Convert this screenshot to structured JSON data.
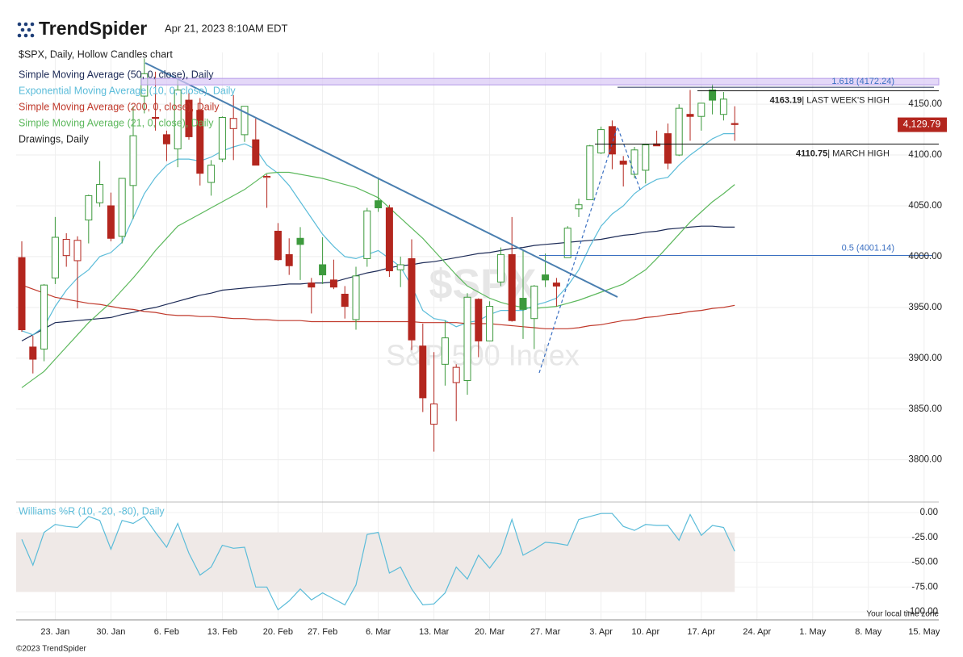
{
  "header": {
    "brand": "TrendSpider",
    "timestamp": "Apr 21, 2023 8:10AM EDT"
  },
  "footer": {
    "copyright": "©2023 TrendSpider",
    "timezone": "Your local time zone"
  },
  "chart_data": [
    {
      "type": "candlestick",
      "title": "$SPX, Daily, Hollow Candles chart",
      "watermark": "$SPX",
      "watermark_subtitle": "S&P 500 Index",
      "drawings_label": "Drawings, Daily",
      "up_color": "#3d9a3d",
      "down_color": "#b3261e",
      "grid": true,
      "categories": [
        null,
        null,
        null,
        "23. Jan",
        null,
        null,
        null,
        null,
        "30. Jan",
        null,
        null,
        null,
        null,
        "6. Feb",
        null,
        null,
        null,
        null,
        "13. Feb",
        null,
        null,
        null,
        null,
        "20. Feb",
        null,
        null,
        null,
        "27. Feb",
        null,
        null,
        null,
        null,
        "6. Mar",
        null,
        null,
        null,
        null,
        "13. Mar",
        null,
        null,
        null,
        null,
        "20. Mar",
        null,
        null,
        null,
        null,
        "27. Mar",
        null,
        null,
        null,
        null,
        "3. Apr",
        null,
        null,
        null,
        "10. Apr",
        null,
        null,
        null,
        null,
        "17. Apr",
        null,
        null,
        null,
        null,
        "24. Apr",
        null,
        null,
        null,
        null,
        "1. May",
        null,
        null,
        null,
        null,
        "8. May",
        null,
        null,
        null,
        null,
        "15. May"
      ],
      "open": [
        3999,
        3911,
        3909,
        3979,
        4001,
        3996,
        4036,
        4053,
        4050,
        4020,
        4070,
        4158,
        4137,
        4120,
        4106,
        4154,
        4144,
        4073,
        4096,
        4126,
        4120,
        4115,
        4078,
        4025,
        4002,
        4018,
        3974,
        3992,
        3977,
        3963,
        3938,
        3998,
        4055,
        4048,
        3987,
        3998,
        3912,
        3835,
        3894,
        3876,
        3878,
        3958,
        3917,
        3975,
        4002,
        3959,
        3939,
        3982,
        3974,
        3999,
        4047,
        4056,
        4102,
        4128,
        4094,
        4081,
        4085,
        4111,
        4121,
        4100,
        4140,
        4138,
        4164,
        4140,
        4131,
        null,
        null,
        null,
        null,
        null,
        null,
        null,
        null,
        null,
        null,
        null,
        null,
        null,
        null,
        null,
        null,
        null
      ],
      "high": [
        4015,
        3922,
        3973,
        4039,
        4023,
        4020,
        4061,
        4094,
        4063,
        4077,
        4148,
        4195,
        4182,
        4124,
        4176,
        4161,
        4156,
        4095,
        4138,
        4159,
        4148,
        4136,
        4081,
        4033,
        4018,
        4029,
        3979,
        4019,
        3997,
        3971,
        3990,
        4048,
        4078,
        4051,
        4000,
        4017,
        3934,
        3906,
        3937,
        3894,
        3964,
        3959,
        3956,
        4009,
        4039,
        4007,
        3972,
        4003,
        3979,
        4030,
        4057,
        4110,
        4128,
        4134,
        4099,
        4108,
        4110,
        4124,
        4131,
        4150,
        4164,
        4151,
        4170,
        4162,
        4148,
        null,
        null,
        null,
        null,
        null,
        null,
        null,
        null,
        null,
        null,
        null,
        null,
        null,
        null,
        null,
        null,
        null
      ],
      "low": [
        3926,
        3885,
        3897,
        3973,
        3990,
        3949,
        4013,
        4049,
        4015,
        4013,
        4037,
        4141,
        4124,
        4094,
        4088,
        4115,
        4070,
        4060,
        4093,
        4095,
        4113,
        4090,
        4048,
        3996,
        3982,
        3977,
        3944,
        3973,
        3968,
        3939,
        3928,
        3990,
        4044,
        3980,
        3970,
        3908,
        3847,
        3808,
        3873,
        3838,
        3864,
        3901,
        3917,
        3971,
        3936,
        3919,
        3909,
        3970,
        3951,
        3999,
        4039,
        4056,
        4101,
        4086,
        4069,
        4077,
        4072,
        4109,
        4086,
        4099,
        4114,
        4124,
        4140,
        4134,
        4114,
        null,
        null,
        null,
        null,
        null,
        null,
        null,
        null,
        null,
        null,
        null,
        null,
        null,
        null,
        null,
        null,
        null
      ],
      "close": [
        3928,
        3899,
        3972,
        4019,
        4017,
        4016,
        4060,
        4071,
        4018,
        4077,
        4119,
        4180,
        4136,
        4111,
        4164,
        4118,
        4082,
        4090,
        4137,
        4136,
        4148,
        4090,
        4079,
        3997,
        3991,
        4012,
        3970,
        3982,
        3970,
        3951,
        3981,
        4045,
        4048,
        3986,
        3992,
        3918,
        3861,
        3855,
        3920,
        3891,
        3960,
        3917,
        3951,
        4002,
        3937,
        3948,
        3971,
        3977,
        3971,
        4028,
        4051,
        4109,
        4125,
        4101,
        4091,
        4105,
        4110,
        4109,
        4092,
        4146,
        4138,
        4151,
        4154,
        4155,
        4130,
        null,
        null,
        null,
        null,
        null,
        null,
        null,
        null,
        null,
        null,
        null,
        null,
        null,
        null,
        null,
        null,
        null
      ],
      "series": [
        {
          "name": "Simple Moving Average (50, 0, close), Daily",
          "color": "#1d2b57",
          "values": [
            3917,
            3923,
            3929,
            3935,
            3936,
            3937,
            3938,
            3939,
            3940,
            3943,
            3945,
            3948,
            3950,
            3953,
            3956,
            3959,
            3962,
            3964,
            3967,
            3968,
            3969,
            3970,
            3971,
            3972,
            3973,
            3973,
            3974,
            3974,
            3975,
            3978,
            3981,
            3984,
            3986,
            3989,
            3991,
            3992,
            3994,
            3995,
            3997,
            3999,
            4001,
            4003,
            4004,
            4006,
            4008,
            4009,
            4011,
            4012,
            4013,
            4014,
            4015,
            4016,
            4017,
            4019,
            4021,
            4022,
            4024,
            4025,
            4027,
            4028,
            4029,
            4030,
            4030,
            4029,
            4029,
            null,
            null,
            null,
            null,
            null,
            null,
            null,
            null,
            null,
            null,
            null,
            null,
            null,
            null,
            null,
            null,
            null
          ]
        },
        {
          "name": "Exponential Moving Average (10, 0, close), Daily",
          "color": "#5bbcd9",
          "values": [
            3927,
            3923,
            3931,
            3951,
            3967,
            3979,
            3987,
            4000,
            4004,
            4014,
            4038,
            4062,
            4078,
            4090,
            4096,
            4096,
            4094,
            4098,
            4104,
            4108,
            4111,
            4106,
            4090,
            4082,
            4070,
            4054,
            4038,
            4022,
            4010,
            4000,
            3998,
            4002,
            4006,
            3998,
            3990,
            3971,
            3947,
            3939,
            3937,
            3931,
            3935,
            3937,
            3943,
            3947,
            3947,
            3947,
            3952,
            3955,
            3959,
            3971,
            3987,
            4010,
            4030,
            4042,
            4050,
            4062,
            4070,
            4076,
            4078,
            4090,
            4100,
            4108,
            4116,
            4121,
            4121,
            null,
            null,
            null,
            null,
            null,
            null,
            null,
            null,
            null,
            null,
            null,
            null,
            null,
            null,
            null,
            null,
            null
          ]
        },
        {
          "name": "Simple Moving Average (200, 0, close), Daily",
          "color": "#c0392b",
          "values": [
            3972,
            3968,
            3964,
            3960,
            3958,
            3956,
            3954,
            3953,
            3951,
            3949,
            3948,
            3946,
            3945,
            3943,
            3942,
            3942,
            3941,
            3941,
            3940,
            3939,
            3939,
            3938,
            3938,
            3937,
            3937,
            3937,
            3936,
            3936,
            3936,
            3936,
            3936,
            3936,
            3936,
            3936,
            3936,
            3936,
            3935,
            3935,
            3935,
            3935,
            3934,
            3934,
            3934,
            3933,
            3932,
            3931,
            3930,
            3929,
            3929,
            3929,
            3930,
            3932,
            3933,
            3935,
            3937,
            3938,
            3940,
            3941,
            3943,
            3944,
            3946,
            3947,
            3949,
            3950,
            3952,
            null,
            null,
            null,
            null,
            null,
            null,
            null,
            null,
            null,
            null,
            null,
            null,
            null,
            null,
            null,
            null,
            null
          ]
        },
        {
          "name": "Simple Moving Average (21, 0, close), Daily",
          "color": "#5cb85c",
          "values": [
            3871,
            3879,
            3887,
            3899,
            3911,
            3923,
            3935,
            3945,
            3955,
            3967,
            3979,
            3992,
            4006,
            4018,
            4030,
            4036,
            4042,
            4048,
            4054,
            4060,
            4066,
            4074,
            4082,
            4083,
            4083,
            4081,
            4079,
            4077,
            4074,
            4071,
            4068,
            4063,
            4058,
            4048,
            4038,
            4028,
            4018,
            4006,
            3994,
            3982,
            3971,
            3965,
            3959,
            3955,
            3952,
            3950,
            3949,
            3950,
            3951,
            3954,
            3957,
            3961,
            3965,
            3969,
            3973,
            3980,
            3987,
            3998,
            4010,
            4022,
            4034,
            4044,
            4054,
            4062,
            4071,
            null,
            null,
            null,
            null,
            null,
            null,
            null,
            null,
            null,
            null,
            null,
            null,
            null,
            null,
            null,
            null,
            null
          ]
        }
      ],
      "levels": [
        {
          "value": 4172.24,
          "label": "1.618 (4172.24)"
        },
        {
          "value": 4163.19,
          "text": "| LAST WEEK'S HIGH"
        },
        {
          "value": 4110.75,
          "text": "| MARCH HIGH"
        },
        {
          "value": 4001.14,
          "label": "0.5 (4001.14)"
        }
      ],
      "last_price": {
        "value": 4129.79,
        "label": "4,129.79"
      },
      "ylim": [
        3760,
        4193
      ],
      "yticks": [
        {
          "value": 3800,
          "label": "3800.00"
        },
        {
          "value": 3850,
          "label": "3850.00"
        },
        {
          "value": 3900,
          "label": "3900.00"
        },
        {
          "value": 3950,
          "label": "3950.00"
        },
        {
          "value": 4000,
          "label": "4000.00"
        },
        {
          "value": 4050,
          "label": "4050.00"
        },
        {
          "value": 4100,
          "label": "4100.00"
        },
        {
          "value": 4150,
          "label": "4150.00"
        }
      ]
    },
    {
      "type": "line",
      "band": [
        -80,
        -20
      ],
      "band_color": "#efe9e7",
      "series": [
        {
          "name": "Williams %R (10, -20, -80), Daily",
          "color": "#5bbcd9",
          "values": [
            -27,
            -53,
            -20,
            -12,
            -14,
            -15,
            -4,
            -8,
            -37,
            -8,
            -11,
            -4,
            -20,
            -35,
            -11,
            -41,
            -63,
            -55,
            -33,
            -36,
            -35,
            -75,
            -75,
            -98,
            -89,
            -77,
            -88,
            -81,
            -87,
            -93,
            -73,
            -22,
            -20,
            -61,
            -55,
            -77,
            -93,
            -92,
            -81,
            -55,
            -67,
            -43,
            -56,
            -41,
            -7,
            -43,
            -37,
            -30,
            -31,
            -33,
            -7,
            -4,
            -1,
            -1,
            -14,
            -18,
            -12,
            -13,
            -13,
            -28,
            -2,
            -23,
            -13,
            -15,
            -39,
            null,
            null,
            null,
            null,
            null,
            null,
            null,
            null,
            null,
            null,
            null,
            null,
            null,
            null,
            null,
            null,
            null
          ]
        }
      ],
      "ylim": [
        -100,
        0
      ],
      "yticks": [
        {
          "value": 0,
          "label": "0.00"
        },
        {
          "value": -25,
          "label": "-25.00"
        },
        {
          "value": -50,
          "label": "-50.00"
        },
        {
          "value": -75,
          "label": "-75.00"
        },
        {
          "value": -100,
          "label": "-100.00"
        }
      ]
    }
  ]
}
